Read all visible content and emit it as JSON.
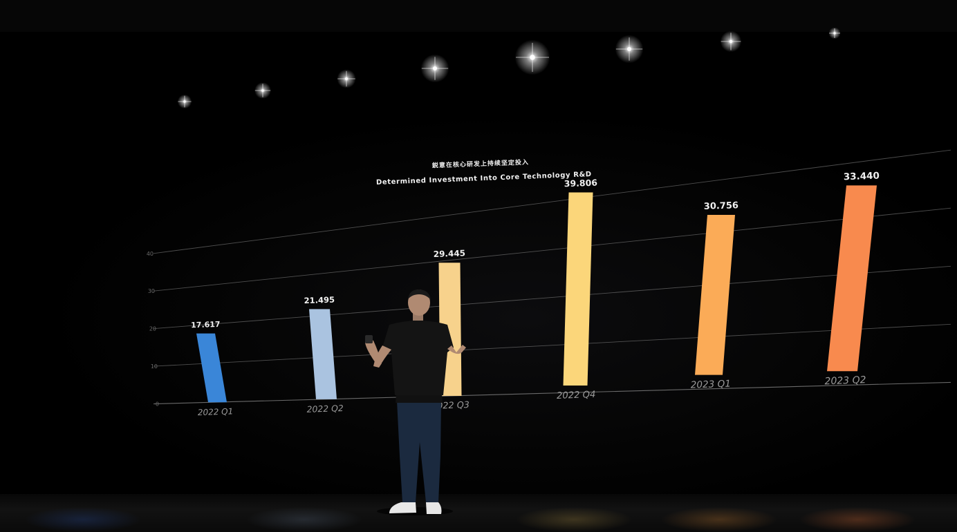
{
  "chart_data": {
    "type": "bar",
    "title": "鋭意在核心研发上持续坚定投入",
    "subtitle": "Determined Investment Into Core Technology R&D",
    "unit_label": "",
    "categories": [
      "2022 Q1",
      "2022 Q2",
      "2022 Q3",
      "2022 Q4",
      "2023 Q1",
      "2023 Q2"
    ],
    "values": [
      17.617,
      21.495,
      29.445,
      39.806,
      30.756,
      33.44
    ],
    "value_labels": [
      "17.617",
      "21.495",
      "29.445",
      "39.806",
      "30.756",
      "33.440"
    ],
    "y_ticks": [
      "0",
      "10",
      "20",
      "30",
      "40"
    ],
    "ylim": [
      0,
      40
    ],
    "grid": true,
    "colors": [
      "#3a86d8",
      "#aac3e0",
      "#f7d28c",
      "#fbd67a",
      "#fbab57",
      "#f88a4e"
    ]
  },
  "scene": {
    "lights": [
      "stage-light",
      "stage-light",
      "stage-light",
      "stage-light",
      "stage-light",
      "stage-light",
      "stage-light",
      "stage-light"
    ]
  }
}
